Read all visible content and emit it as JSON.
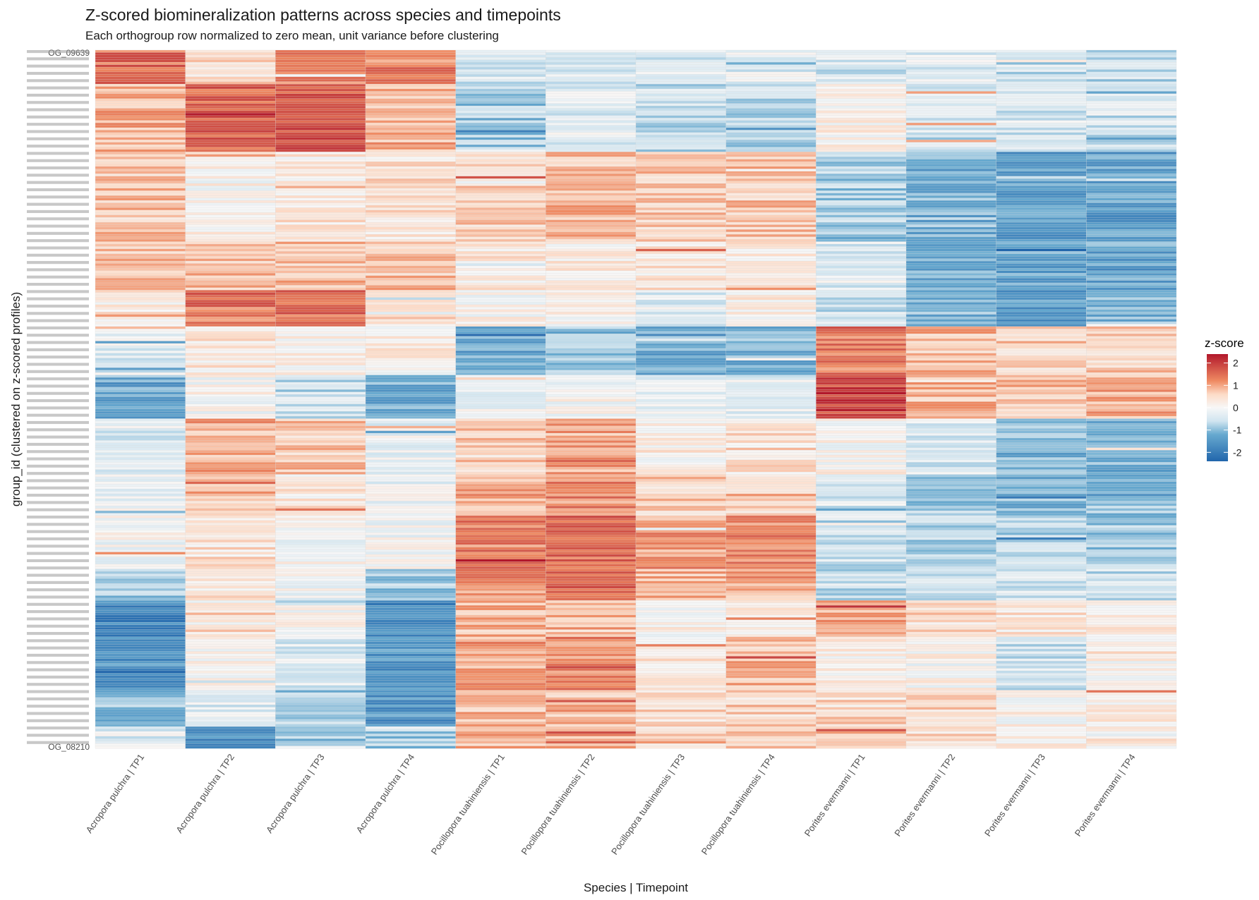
{
  "chart_data": {
    "type": "heatmap",
    "title": "Z-scored biomineralization patterns across species and timepoints",
    "subtitle": "Each orthogroup row normalized to zero mean, unit variance before clustering",
    "xlabel": "Species | Timepoint",
    "ylabel": "group_id (clustered on z-scored profiles)",
    "x_categories": [
      "Acropora pulchra | TP1",
      "Acropora pulchra | TP2",
      "Acropora pulchra | TP3",
      "Acropora pulchra | TP4",
      "Pocillopora tuahiniensis | TP1",
      "Pocillopora tuahiniensis | TP2",
      "Pocillopora tuahiniensis | TP3",
      "Pocillopora tuahiniensis | TP4",
      "Porites evermanni | TP1",
      "Porites evermanni | TP2",
      "Porites evermanni | TP3",
      "Porites evermanni | TP4"
    ],
    "y_labels_first_last": [
      "OG_09639",
      "OG_08210"
    ],
    "row_clusters": [
      {
        "rows": 14,
        "z": [
          1.5,
          0.5,
          1.2,
          1.3,
          -0.5,
          -0.3,
          -0.4,
          -0.3,
          -0.5,
          -0.3,
          -0.6,
          -0.6
        ]
      },
      {
        "rows": 28,
        "z": [
          0.9,
          1.6,
          1.7,
          0.9,
          -0.9,
          -0.3,
          -0.6,
          -0.7,
          0.2,
          -0.3,
          -0.4,
          -0.5
        ]
      },
      {
        "rows": 37,
        "z": [
          0.7,
          0.1,
          0.3,
          0.4,
          0.6,
          0.8,
          0.7,
          0.7,
          -0.8,
          -1.2,
          -1.4,
          -1.4
        ]
      },
      {
        "rows": 20,
        "z": [
          0.7,
          0.7,
          0.8,
          0.8,
          0.3,
          0.2,
          0.3,
          0.3,
          -0.3,
          -1.2,
          -1.3,
          -1.3
        ]
      },
      {
        "rows": 15,
        "z": [
          0.3,
          1.4,
          1.5,
          0.4,
          0.1,
          0.2,
          -0.3,
          0.2,
          -0.5,
          -1.1,
          -1.4,
          -1.1
        ]
      },
      {
        "rows": 20,
        "z": [
          -0.3,
          0.3,
          0.2,
          0.2,
          -1.3,
          -0.8,
          -1.2,
          -1.1,
          1.4,
          0.8,
          0.6,
          0.6
        ]
      },
      {
        "rows": 18,
        "z": [
          -1.3,
          0.0,
          -0.6,
          -1.2,
          -0.2,
          0.0,
          -0.3,
          -0.3,
          1.9,
          0.8,
          0.8,
          1.0
        ]
      },
      {
        "rows": 23,
        "z": [
          -0.3,
          0.9,
          0.7,
          -0.2,
          0.6,
          1.0,
          0.2,
          0.4,
          0.1,
          -0.4,
          -1.1,
          -1.1
        ]
      },
      {
        "rows": 17,
        "z": [
          -0.2,
          0.6,
          0.3,
          -0.2,
          1.0,
          1.2,
          0.6,
          0.6,
          -0.4,
          -0.9,
          -1.1,
          -1.0
        ]
      },
      {
        "rows": 22,
        "z": [
          -0.1,
          0.4,
          0.0,
          -0.1,
          1.3,
          1.5,
          1.1,
          1.2,
          -0.5,
          -0.7,
          -0.7,
          -0.9
        ]
      },
      {
        "rows": 13,
        "z": [
          -0.8,
          0.3,
          -0.1,
          -0.8,
          1.2,
          1.5,
          0.8,
          1.0,
          -0.6,
          -0.5,
          -0.5,
          -0.6
        ]
      },
      {
        "rows": 15,
        "z": [
          -1.8,
          0.2,
          0.0,
          -1.7,
          0.8,
          0.9,
          0.1,
          0.2,
          1.0,
          0.5,
          0.3,
          0.3
        ]
      },
      {
        "rows": 22,
        "z": [
          -1.5,
          0.1,
          -0.3,
          -1.5,
          1.0,
          1.2,
          0.3,
          0.8,
          0.2,
          0.1,
          -0.5,
          0.1
        ]
      },
      {
        "rows": 15,
        "z": [
          -1.0,
          -0.4,
          -0.8,
          -1.5,
          0.8,
          0.8,
          0.5,
          0.6,
          0.5,
          0.5,
          0.1,
          0.2
        ]
      },
      {
        "rows": 9,
        "z": [
          -0.3,
          -1.6,
          -1.2,
          -0.9,
          0.9,
          1.0,
          0.6,
          0.6,
          0.7,
          0.5,
          0.3,
          0.3
        ]
      }
    ],
    "color_scale": {
      "name": "RdBu (diverging)",
      "low_color": "#2166ac",
      "mid_color": "#f7f7f7",
      "high_color": "#b2182b",
      "limits": [
        -2.4,
        2.4
      ]
    },
    "legend": {
      "title": "z-score",
      "ticks": [
        2,
        1,
        0,
        -1,
        -2
      ],
      "tick_labels": [
        "2",
        "1",
        "0",
        "-1",
        "-2"
      ],
      "placement": "right"
    },
    "grid": false
  }
}
